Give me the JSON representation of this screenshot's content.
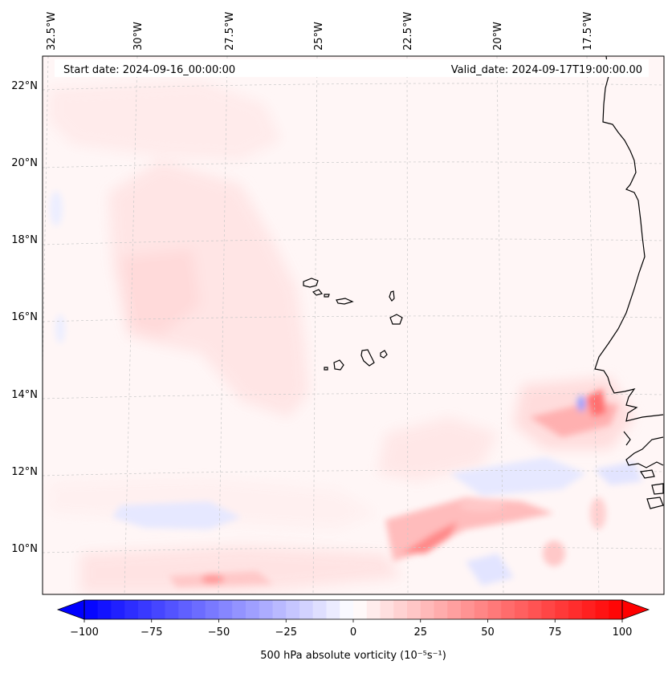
{
  "map": {
    "start_date": "Start date: 2024-09-16_00:00:00",
    "valid_date": "Valid_date: 2024-09-17T19:00:00.00",
    "lon_labels": [
      "32.5°W",
      "30°W",
      "27.5°W",
      "25°W",
      "22.5°W",
      "20°W",
      "17.5°W"
    ],
    "lat_labels": [
      "22°N",
      "20°N",
      "18°N",
      "16°N",
      "14°N",
      "12°N",
      "10°N"
    ],
    "gridlines": true,
    "extent": {
      "lon_min": -32.5,
      "lon_max": -15.7,
      "lat_min": 8.9,
      "lat_max": 22.7
    }
  },
  "colorbar": {
    "label": "500 hPa absolute vorticity (10⁻⁵s⁻¹)",
    "tick_labels": [
      "−100",
      "−75",
      "−50",
      "−25",
      "0",
      "25",
      "50",
      "75",
      "100"
    ],
    "ticks": [
      -100,
      -75,
      -50,
      -25,
      0,
      25,
      50,
      75,
      100
    ],
    "range": [
      -100,
      100
    ],
    "extend": "both",
    "colormap": "bwr",
    "colors": {
      "min": "#0000ff",
      "mid": "#ffffff",
      "max": "#ff0000"
    }
  }
}
